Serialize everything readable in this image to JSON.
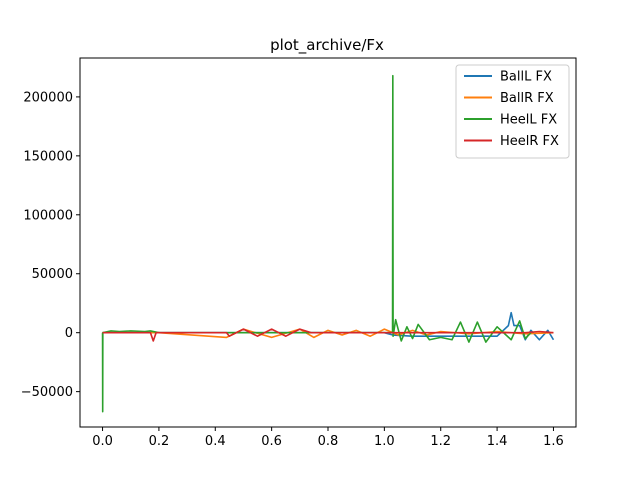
{
  "chart_data": {
    "type": "line",
    "title": "plot_archive/Fx",
    "xlabel": "",
    "ylabel": "",
    "xlim": [
      -0.08,
      1.68
    ],
    "ylim": [
      -80000,
      233000
    ],
    "xticks": [
      0.0,
      0.2,
      0.4,
      0.6,
      0.8,
      1.0,
      1.2,
      1.4,
      1.6
    ],
    "xtick_labels": [
      "0.0",
      "0.2",
      "0.4",
      "0.6",
      "0.8",
      "1.0",
      "1.2",
      "1.4",
      "1.6"
    ],
    "yticks": [
      -50000,
      0,
      50000,
      100000,
      150000,
      200000
    ],
    "ytick_labels": [
      "−50000",
      "0",
      "50000",
      "100000",
      "150000",
      "200000"
    ],
    "grid": false,
    "legend_position": "top-right",
    "series": [
      {
        "name": "BallL FX",
        "color": "#1f77b4",
        "x": [
          0.0,
          0.1,
          0.2,
          0.4,
          0.6,
          0.8,
          1.0,
          1.03,
          1.1,
          1.2,
          1.3,
          1.4,
          1.44,
          1.45,
          1.46,
          1.48,
          1.5,
          1.52,
          1.55,
          1.58,
          1.6
        ],
        "y": [
          0,
          0,
          0,
          0,
          0,
          0,
          0,
          -2000,
          -3000,
          -3000,
          -3000,
          -3000,
          6000,
          17000,
          6000,
          6000,
          -6000,
          2000,
          -6000,
          2000,
          -6000
        ]
      },
      {
        "name": "BallR FX",
        "color": "#ff7f0e",
        "x": [
          0.0,
          0.1,
          0.2,
          0.44,
          0.5,
          0.6,
          0.7,
          0.75,
          0.8,
          0.85,
          0.9,
          0.95,
          1.0,
          1.05,
          1.1,
          1.15,
          1.2,
          1.3,
          1.4,
          1.5,
          1.6
        ],
        "y": [
          0,
          0,
          0,
          -4000,
          3000,
          -4000,
          3000,
          -4000,
          2000,
          -2000,
          2000,
          -3000,
          3000,
          -2000,
          2000,
          -2000,
          1000,
          -1000,
          1000,
          -1000,
          0
        ]
      },
      {
        "name": "HeelL FX",
        "color": "#2ca02c",
        "x": [
          0.0,
          0.0005,
          0.001,
          0.03,
          0.06,
          0.1,
          0.15,
          0.17,
          0.2,
          0.5,
          1.0,
          1.029,
          1.03,
          1.031,
          1.04,
          1.06,
          1.08,
          1.1,
          1.12,
          1.16,
          1.2,
          1.24,
          1.27,
          1.3,
          1.33,
          1.36,
          1.4,
          1.45,
          1.48,
          1.5,
          1.52
        ],
        "y": [
          0,
          -67000,
          0,
          1500,
          1000,
          1500,
          1000,
          1500,
          0,
          0,
          0,
          0,
          218000,
          -3000,
          11000,
          -7000,
          5000,
          -5000,
          7000,
          -6000,
          -4000,
          -6000,
          9000,
          -8000,
          9000,
          -8000,
          5000,
          -6000,
          10000,
          -5000,
          0
        ]
      },
      {
        "name": "HeelR FX",
        "color": "#d62728",
        "x": [
          0.0,
          0.05,
          0.1,
          0.17,
          0.18,
          0.19,
          0.25,
          0.3,
          0.44,
          0.45,
          0.5,
          0.55,
          0.6,
          0.65,
          0.7,
          0.74,
          0.8,
          1.0,
          1.2,
          1.4,
          1.5,
          1.55,
          1.6
        ],
        "y": [
          0,
          0,
          0,
          0,
          -7000,
          0,
          0,
          0,
          0,
          -3000,
          3000,
          -3000,
          3000,
          -3000,
          3000,
          0,
          0,
          0,
          0,
          0,
          0,
          1000,
          0
        ]
      }
    ]
  }
}
